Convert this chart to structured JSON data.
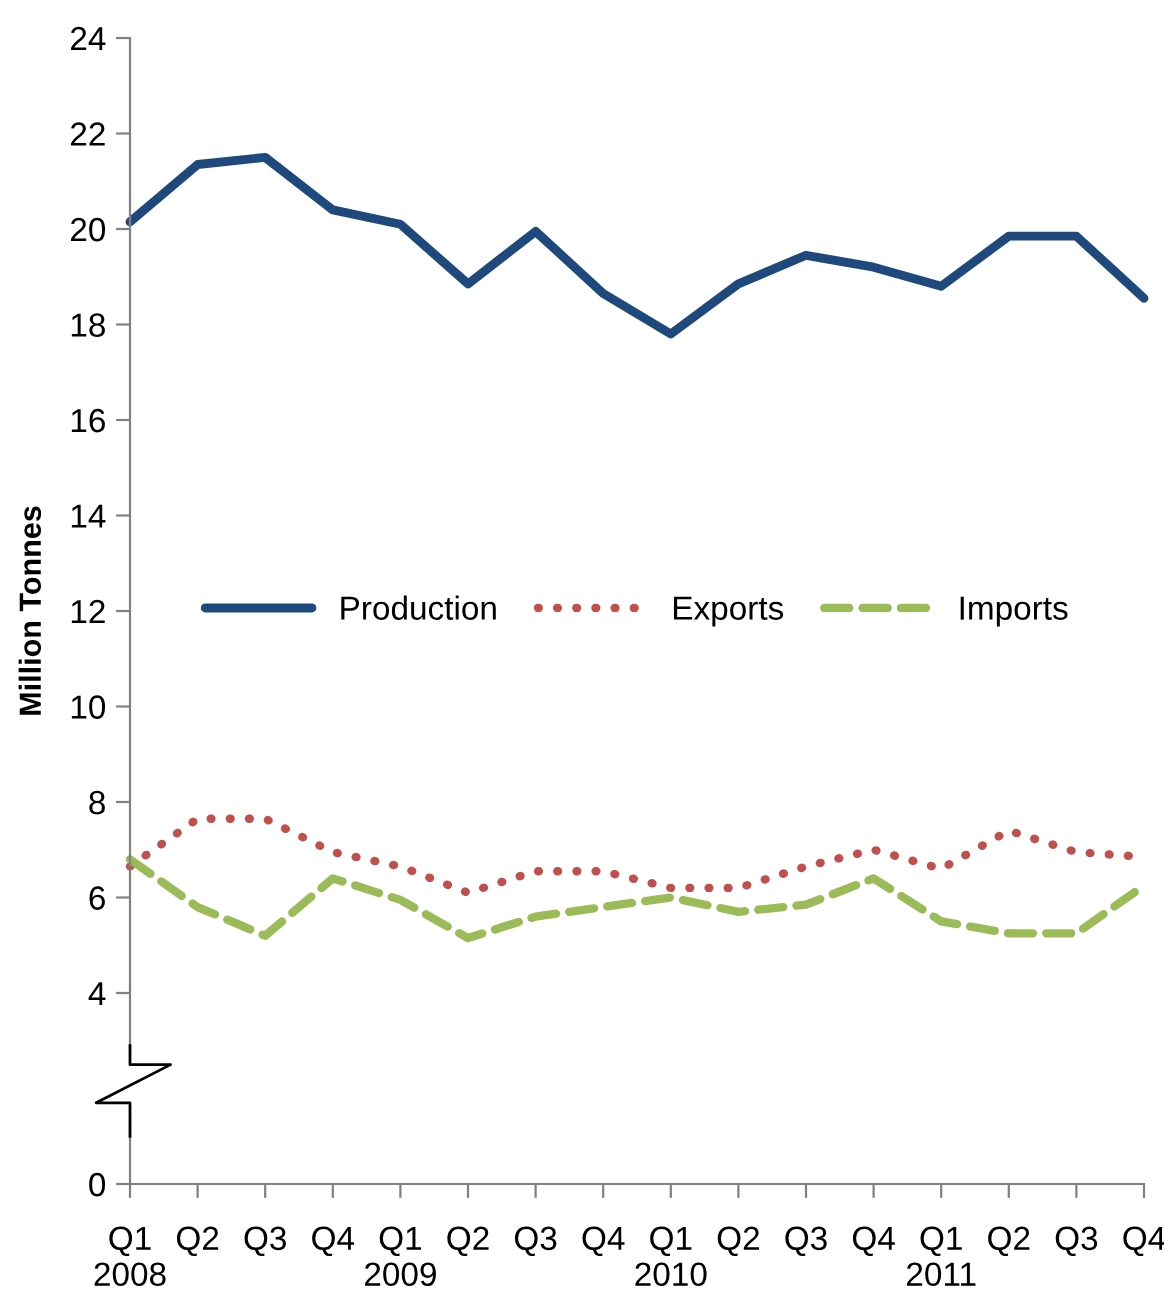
{
  "chart_data": {
    "type": "line",
    "ylabel": "Million Tonnes",
    "categories": [
      "Q1\n2008",
      "Q2",
      "Q3",
      "Q4",
      "Q1\n2009",
      "Q2",
      "Q3",
      "Q4",
      "Q1\n2010",
      "Q2",
      "Q3",
      "Q4",
      "Q1\n2011",
      "Q2",
      "Q3",
      "Q4"
    ],
    "series": [
      {
        "name": "Production",
        "color": "#1f497d",
        "line_style": "solid",
        "values": [
          20.15,
          21.35,
          21.5,
          20.4,
          20.1,
          18.85,
          19.95,
          18.65,
          17.8,
          18.85,
          19.45,
          19.2,
          18.8,
          19.85,
          19.85,
          18.55
        ]
      },
      {
        "name": "Exports",
        "color": "#c0504d",
        "line_style": "dotted",
        "values": [
          6.65,
          7.65,
          7.65,
          6.95,
          6.65,
          6.1,
          6.55,
          6.55,
          6.2,
          6.2,
          6.65,
          7.0,
          6.6,
          7.4,
          6.95,
          6.85
        ]
      },
      {
        "name": "Imports",
        "color": "#9bbb59",
        "line_style": "dashed",
        "values": [
          6.8,
          5.8,
          5.2,
          6.4,
          5.95,
          5.15,
          5.6,
          5.8,
          6.0,
          5.7,
          5.85,
          6.4,
          5.5,
          5.25,
          5.25,
          6.25
        ]
      }
    ],
    "ylim": [
      0,
      24
    ],
    "yticks": [
      0,
      4,
      6,
      8,
      10,
      12,
      14,
      16,
      18,
      20,
      22,
      24
    ],
    "grid": false,
    "legend": "center",
    "marker": "none"
  }
}
